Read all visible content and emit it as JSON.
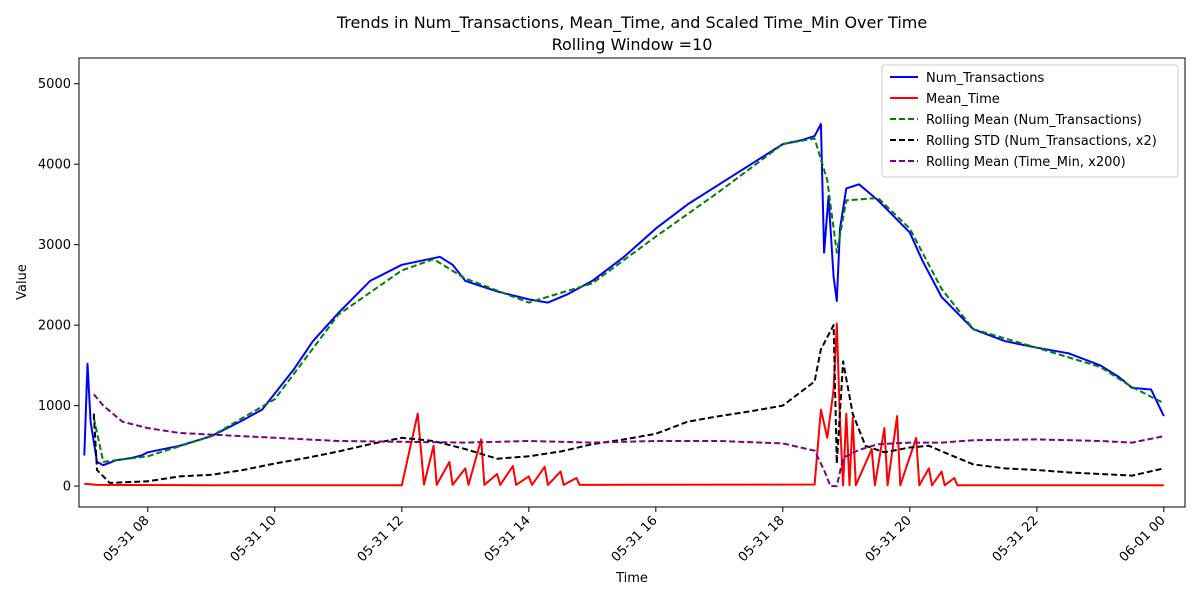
{
  "chart_data": {
    "type": "line",
    "title": "Trends in Num_Transactions, Mean_Time, and Scaled Time_Min Over Time",
    "subtitle": "Rolling Window =10",
    "xlabel": "Time",
    "ylabel": "Value",
    "xlim": [
      "05-31 06:55",
      "06-01 00:20"
    ],
    "ylim": [
      -260,
      5320
    ],
    "x_ticks": [
      {
        "t": 8,
        "label": "05-31 08"
      },
      {
        "t": 10,
        "label": "05-31 10"
      },
      {
        "t": 12,
        "label": "05-31 12"
      },
      {
        "t": 14,
        "label": "05-31 14"
      },
      {
        "t": 16,
        "label": "05-31 16"
      },
      {
        "t": 18,
        "label": "05-31 18"
      },
      {
        "t": 20,
        "label": "05-31 20"
      },
      {
        "t": 22,
        "label": "05-31 22"
      },
      {
        "t": 24,
        "label": "06-01 00"
      }
    ],
    "y_ticks": [
      0,
      1000,
      2000,
      3000,
      4000,
      5000
    ],
    "grid": false,
    "legend_position": "top-right",
    "series": [
      {
        "name": "Num_Transactions",
        "color": "#0000ff",
        "dash": "solid",
        "points": [
          [
            7.0,
            380
          ],
          [
            7.05,
            1520
          ],
          [
            7.1,
            800
          ],
          [
            7.2,
            300
          ],
          [
            7.3,
            260
          ],
          [
            7.5,
            320
          ],
          [
            7.75,
            350
          ],
          [
            7.9,
            380
          ],
          [
            8.0,
            420
          ],
          [
            8.5,
            500
          ],
          [
            9.0,
            620
          ],
          [
            9.5,
            820
          ],
          [
            9.8,
            950
          ],
          [
            10.0,
            1150
          ],
          [
            10.3,
            1450
          ],
          [
            10.6,
            1800
          ],
          [
            11.0,
            2150
          ],
          [
            11.5,
            2550
          ],
          [
            12.0,
            2750
          ],
          [
            12.3,
            2800
          ],
          [
            12.6,
            2850
          ],
          [
            12.8,
            2750
          ],
          [
            13.0,
            2550
          ],
          [
            13.5,
            2420
          ],
          [
            14.0,
            2320
          ],
          [
            14.3,
            2280
          ],
          [
            14.6,
            2380
          ],
          [
            15.0,
            2550
          ],
          [
            15.5,
            2850
          ],
          [
            16.0,
            3200
          ],
          [
            16.5,
            3500
          ],
          [
            17.0,
            3750
          ],
          [
            17.5,
            4000
          ],
          [
            18.0,
            4250
          ],
          [
            18.3,
            4300
          ],
          [
            18.5,
            4350
          ],
          [
            18.6,
            4500
          ],
          [
            18.65,
            2900
          ],
          [
            18.72,
            3600
          ],
          [
            18.8,
            2600
          ],
          [
            18.85,
            2300
          ],
          [
            18.9,
            3200
          ],
          [
            19.0,
            3700
          ],
          [
            19.2,
            3750
          ],
          [
            19.5,
            3550
          ],
          [
            20.0,
            3150
          ],
          [
            20.2,
            2800
          ],
          [
            20.5,
            2350
          ],
          [
            21.0,
            1950
          ],
          [
            21.5,
            1800
          ],
          [
            22.0,
            1720
          ],
          [
            22.5,
            1650
          ],
          [
            23.0,
            1500
          ],
          [
            23.3,
            1350
          ],
          [
            23.5,
            1220
          ],
          [
            23.8,
            1200
          ],
          [
            24.0,
            870
          ]
        ]
      },
      {
        "name": "Mean_Time",
        "color": "#ff0000",
        "dash": "solid",
        "points": [
          [
            7.0,
            30
          ],
          [
            7.2,
            15
          ],
          [
            9.0,
            10
          ],
          [
            12.0,
            10
          ],
          [
            12.25,
            900
          ],
          [
            12.35,
            20
          ],
          [
            12.5,
            500
          ],
          [
            12.55,
            15
          ],
          [
            12.75,
            300
          ],
          [
            12.8,
            15
          ],
          [
            13.0,
            220
          ],
          [
            13.05,
            15
          ],
          [
            13.25,
            580
          ],
          [
            13.3,
            15
          ],
          [
            13.5,
            150
          ],
          [
            13.55,
            15
          ],
          [
            13.75,
            250
          ],
          [
            13.8,
            15
          ],
          [
            14.0,
            120
          ],
          [
            14.05,
            15
          ],
          [
            14.25,
            240
          ],
          [
            14.3,
            15
          ],
          [
            14.5,
            180
          ],
          [
            14.55,
            15
          ],
          [
            14.75,
            100
          ],
          [
            14.8,
            15
          ],
          [
            18.5,
            20
          ],
          [
            18.6,
            950
          ],
          [
            18.7,
            600
          ],
          [
            18.8,
            1200
          ],
          [
            18.85,
            2020
          ],
          [
            18.9,
            800
          ],
          [
            18.95,
            10
          ],
          [
            19.0,
            900
          ],
          [
            19.05,
            10
          ],
          [
            19.1,
            850
          ],
          [
            19.15,
            10
          ],
          [
            19.4,
            460
          ],
          [
            19.45,
            10
          ],
          [
            19.6,
            720
          ],
          [
            19.65,
            10
          ],
          [
            19.8,
            870
          ],
          [
            19.85,
            10
          ],
          [
            20.1,
            600
          ],
          [
            20.15,
            10
          ],
          [
            20.3,
            220
          ],
          [
            20.35,
            10
          ],
          [
            20.5,
            180
          ],
          [
            20.55,
            10
          ],
          [
            20.7,
            100
          ],
          [
            20.75,
            10
          ],
          [
            24.0,
            10
          ]
        ]
      },
      {
        "name": "Rolling Mean (Num_Transactions)",
        "color": "#008000",
        "dash": "6,3",
        "points": [
          [
            7.15,
            850
          ],
          [
            7.3,
            300
          ],
          [
            8.0,
            370
          ],
          [
            9.0,
            620
          ],
          [
            10.0,
            1080
          ],
          [
            11.0,
            2130
          ],
          [
            12.0,
            2680
          ],
          [
            12.5,
            2820
          ],
          [
            13.0,
            2580
          ],
          [
            14.0,
            2280
          ],
          [
            15.0,
            2520
          ],
          [
            16.0,
            3100
          ],
          [
            17.0,
            3660
          ],
          [
            18.0,
            4250
          ],
          [
            18.5,
            4320
          ],
          [
            18.7,
            3800
          ],
          [
            18.85,
            2900
          ],
          [
            19.0,
            3550
          ],
          [
            19.5,
            3580
          ],
          [
            20.0,
            3200
          ],
          [
            20.5,
            2450
          ],
          [
            21.0,
            1950
          ],
          [
            22.0,
            1720
          ],
          [
            23.0,
            1480
          ],
          [
            23.5,
            1230
          ],
          [
            24.0,
            1030
          ]
        ]
      },
      {
        "name": "Rolling STD (Num_Transactions, x2)",
        "color": "#000000",
        "dash": "6,3",
        "points": [
          [
            7.15,
            900
          ],
          [
            7.2,
            200
          ],
          [
            7.4,
            40
          ],
          [
            8.0,
            60
          ],
          [
            8.5,
            120
          ],
          [
            9.0,
            140
          ],
          [
            9.5,
            200
          ],
          [
            10.0,
            280
          ],
          [
            10.5,
            350
          ],
          [
            11.0,
            430
          ],
          [
            11.5,
            520
          ],
          [
            12.0,
            600
          ],
          [
            12.5,
            560
          ],
          [
            13.0,
            460
          ],
          [
            13.5,
            340
          ],
          [
            14.0,
            370
          ],
          [
            14.5,
            430
          ],
          [
            15.0,
            520
          ],
          [
            15.5,
            580
          ],
          [
            16.0,
            650
          ],
          [
            16.5,
            800
          ],
          [
            17.0,
            870
          ],
          [
            17.5,
            930
          ],
          [
            18.0,
            1000
          ],
          [
            18.5,
            1300
          ],
          [
            18.6,
            1700
          ],
          [
            18.8,
            2000
          ],
          [
            18.85,
            280
          ],
          [
            18.95,
            1550
          ],
          [
            19.1,
            900
          ],
          [
            19.3,
            500
          ],
          [
            19.6,
            420
          ],
          [
            20.0,
            480
          ],
          [
            20.3,
            500
          ],
          [
            20.6,
            400
          ],
          [
            21.0,
            270
          ],
          [
            21.5,
            220
          ],
          [
            22.0,
            200
          ],
          [
            22.5,
            170
          ],
          [
            23.0,
            150
          ],
          [
            23.5,
            130
          ],
          [
            24.0,
            220
          ]
        ]
      },
      {
        "name": "Rolling Mean (Time_Min, x200)",
        "color": "#800080",
        "dash": "6,3",
        "points": [
          [
            7.15,
            1140
          ],
          [
            7.3,
            1000
          ],
          [
            7.6,
            800
          ],
          [
            8.0,
            720
          ],
          [
            8.5,
            660
          ],
          [
            9.0,
            640
          ],
          [
            10.0,
            600
          ],
          [
            11.0,
            560
          ],
          [
            12.0,
            550
          ],
          [
            13.0,
            540
          ],
          [
            14.0,
            560
          ],
          [
            15.0,
            540
          ],
          [
            16.0,
            560
          ],
          [
            17.0,
            560
          ],
          [
            18.0,
            530
          ],
          [
            18.5,
            440
          ],
          [
            18.65,
            200
          ],
          [
            18.75,
            0
          ],
          [
            18.85,
            0
          ],
          [
            18.95,
            350
          ],
          [
            19.2,
            450
          ],
          [
            19.5,
            520
          ],
          [
            20.0,
            540
          ],
          [
            20.5,
            540
          ],
          [
            21.0,
            570
          ],
          [
            22.0,
            580
          ],
          [
            23.0,
            560
          ],
          [
            23.5,
            540
          ],
          [
            24.0,
            620
          ]
        ]
      }
    ]
  }
}
